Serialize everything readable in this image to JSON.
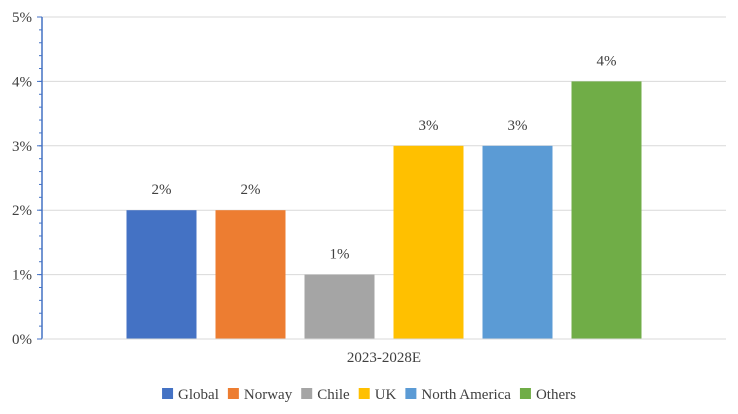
{
  "chart_data": {
    "type": "bar",
    "categories": [
      "2023-2028E"
    ],
    "series": [
      {
        "name": "Global",
        "values": [
          2
        ],
        "label": "2%",
        "color": "#4472C4"
      },
      {
        "name": "Norway",
        "values": [
          2
        ],
        "label": "2%",
        "color": "#ED7D31"
      },
      {
        "name": "Chile",
        "values": [
          1
        ],
        "label": "1%",
        "color": "#A5A5A5"
      },
      {
        "name": "UK",
        "values": [
          3
        ],
        "label": "3%",
        "color": "#FFC000"
      },
      {
        "name": "North America",
        "values": [
          3
        ],
        "label": "3%",
        "color": "#5B9BD5"
      },
      {
        "name": "Others",
        "values": [
          4
        ],
        "label": "4%",
        "color": "#70AD47"
      }
    ],
    "ylim": [
      0,
      5
    ],
    "yticks": [
      {
        "value": 0,
        "label": "0%"
      },
      {
        "value": 1,
        "label": "1%"
      },
      {
        "value": 2,
        "label": "2%"
      },
      {
        "value": 3,
        "label": "3%"
      },
      {
        "value": 4,
        "label": "4%"
      },
      {
        "value": 5,
        "label": "5%"
      }
    ],
    "title": "",
    "xlabel": "",
    "ylabel": "",
    "grid": true,
    "legend": "bottom",
    "gridline_color": "#D9D9D9",
    "axis_color": "#4472C4"
  }
}
